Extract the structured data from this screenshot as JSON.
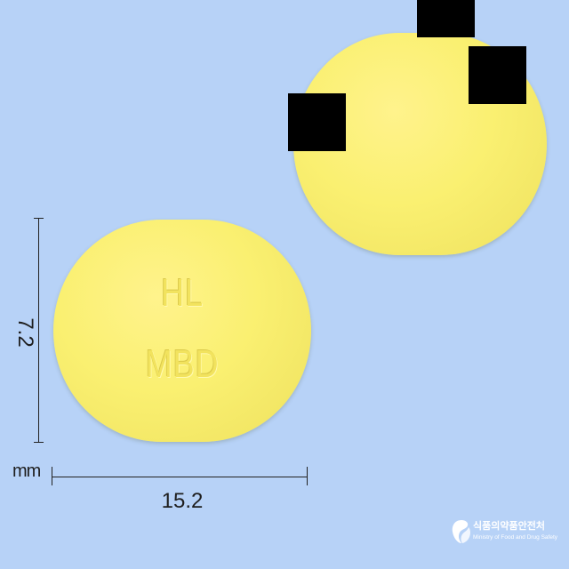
{
  "image": {
    "description_color_background": "#b7d2f7",
    "tablet_color": "#faf071"
  },
  "tablet": {
    "imprint_line1": "HL",
    "imprint_line2": "MBD"
  },
  "dimensions": {
    "height": "7.2",
    "width": "15.2",
    "unit": "mm"
  },
  "logo": {
    "korean": "식품의약품안전처",
    "english": "Ministry of Food and Drug Safety"
  }
}
